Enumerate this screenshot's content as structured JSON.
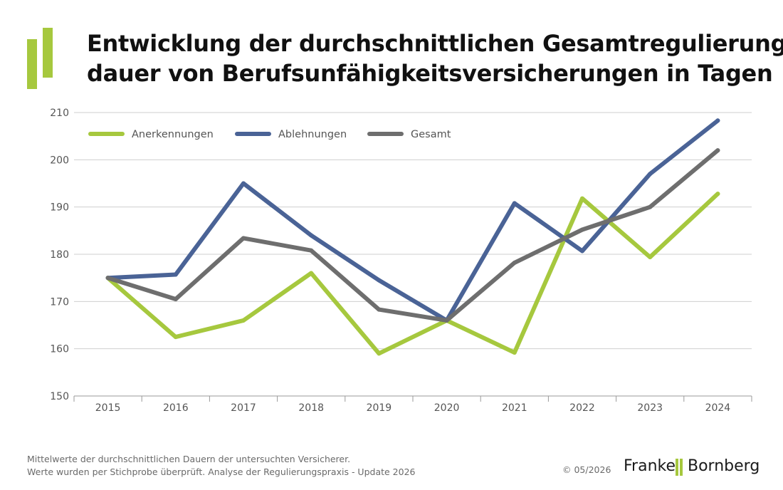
{
  "header": {
    "title_line1": "Entwicklung der durchschnittlichen Gesamtregulierungs-",
    "title_line2": "dauer von Berufsunfähigkeitsversicherungen in Tagen"
  },
  "footer": {
    "note_line1": "Mittelwerte der durchschnittlichen Dauern der untersuchten Versicherer.",
    "note_line2": "Werte wurden per Stichprobe überprüft. Analyse der Regulierungspraxis - Update 2026",
    "copyright": "© 05/2026",
    "brand_left": "Franke",
    "brand_right": "Bornberg"
  },
  "colors": {
    "accent_green": "#a6c83e",
    "accent_blue": "#4a6396",
    "accent_gray": "#6e6e6e",
    "grid": "#cfcfcf",
    "tick_text": "#555555"
  },
  "chart_data": {
    "type": "line",
    "title": "Entwicklung der durchschnittlichen Gesamtregulierungsdauer von Berufsunfähigkeitsversicherungen in Tagen",
    "xlabel": "",
    "ylabel": "",
    "x": [
      "2015",
      "2016",
      "2017",
      "2018",
      "2019",
      "2020",
      "2021",
      "2022",
      "2023",
      "2024"
    ],
    "yticks": [
      "150",
      "160",
      "170",
      "180",
      "190",
      "200",
      "210"
    ],
    "ylim": [
      150,
      210
    ],
    "grid": true,
    "legend_position": "top-left",
    "series": [
      {
        "name": "Anerkennungen",
        "color": "#a6c83e",
        "values": [
          175,
          162.5,
          166,
          176,
          159,
          166,
          159.2,
          191.8,
          179.4,
          192.8
        ]
      },
      {
        "name": "Ablehnungen",
        "color": "#4a6396",
        "values": [
          175,
          175.7,
          195,
          184,
          174.5,
          166,
          190.8,
          180.7,
          197,
          208.3
        ]
      },
      {
        "name": "Gesamt",
        "color": "#6e6e6e",
        "values": [
          175,
          170.5,
          183.4,
          180.8,
          168.3,
          166,
          178.2,
          185.2,
          190,
          202
        ]
      }
    ]
  }
}
